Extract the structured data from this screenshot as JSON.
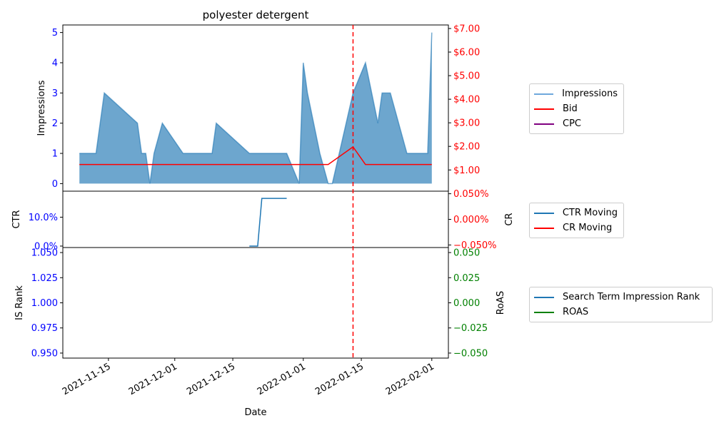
{
  "chart_data": [
    {
      "panel": "impressions-bid",
      "type": "area",
      "title": "polyester detergent",
      "ylabel_left": "Impressions",
      "ylabel_right": "",
      "ylim_left": [
        -0.25,
        5.25
      ],
      "yticks_left": [
        "0",
        "1",
        "2",
        "3",
        "4",
        "5"
      ],
      "ylim_right": [
        0.1,
        7.15
      ],
      "yticks_right": [
        "$1.00",
        "$2.00",
        "$3.00",
        "$4.00",
        "$5.00",
        "$6.00",
        "$7.00"
      ],
      "legend": [
        "Impressions",
        "Bid",
        "CPC"
      ],
      "legend_placement": "outside-right",
      "series": [
        {
          "name": "Impressions",
          "color": "#1f77b4",
          "axis": "left",
          "x": [
            "2021-11-08",
            "2021-11-12",
            "2021-11-14",
            "2021-11-22",
            "2021-11-23",
            "2021-11-24",
            "2021-11-25",
            "2021-11-26",
            "2021-11-28",
            "2021-12-03",
            "2021-12-10",
            "2021-12-11",
            "2021-12-19",
            "2021-12-28",
            "2021-12-31",
            "2022-01-01",
            "2022-01-02",
            "2022-01-05",
            "2022-01-07",
            "2022-01-08",
            "2022-01-13",
            "2022-01-16",
            "2022-01-19",
            "2022-01-20",
            "2022-01-22",
            "2022-01-26",
            "2022-01-31",
            "2022-02-01"
          ],
          "values": [
            1,
            1,
            3,
            2,
            1,
            1,
            0,
            1,
            2,
            1,
            1,
            2,
            1,
            1,
            0,
            4,
            3,
            1,
            0,
            0,
            3,
            4,
            2,
            3,
            3,
            1,
            1,
            5
          ]
        },
        {
          "name": "Bid",
          "color": "#ff0000",
          "axis": "right",
          "x": [
            "2021-11-08",
            "2022-01-07",
            "2022-01-13",
            "2022-01-16",
            "2022-02-01"
          ],
          "values": [
            1.23,
            1.23,
            1.98,
            1.23,
            1.23
          ]
        },
        {
          "name": "CPC",
          "color": "#800080",
          "axis": "right",
          "x": [],
          "values": []
        }
      ],
      "annotations": [
        {
          "type": "vline",
          "x": "2022-01-13",
          "color": "#ff0000",
          "style": "dashed"
        }
      ]
    },
    {
      "panel": "ctr-cr",
      "type": "line",
      "ylabel_left": "CTR",
      "ylabel_right": "CR",
      "ylim_left": [
        -0.005,
        0.19
      ],
      "yticks_left": [
        "0.0%",
        "10.0%"
      ],
      "ylim_right": [
        -0.00055,
        0.00055
      ],
      "yticks_right": [
        "0.050%",
        "0.000%",
        "−0.050%"
      ],
      "legend": [
        "CTR Moving",
        "CR Moving"
      ],
      "legend_placement": "outside-right",
      "series": [
        {
          "name": "CTR Moving",
          "color": "#1f77b4",
          "axis": "left",
          "x": [
            "2021-12-19",
            "2021-12-21",
            "2021-12-22",
            "2021-12-28"
          ],
          "values": [
            0.0,
            0.0,
            0.165,
            0.165
          ]
        },
        {
          "name": "CR Moving",
          "color": "#ff0000",
          "axis": "right",
          "x": [],
          "values": []
        }
      ]
    },
    {
      "panel": "rank-roas",
      "type": "line",
      "ylabel_left": "IS Rank",
      "ylabel_right": "RoAS",
      "ylim_left": [
        0.945,
        1.055
      ],
      "yticks_left": [
        "0.950",
        "0.975",
        "1.000",
        "1.025",
        "1.050"
      ],
      "ylim_right": [
        -0.055,
        0.055
      ],
      "yticks_right": [
        "−0.050",
        "−0.025",
        "0.000",
        "0.025",
        "0.050"
      ],
      "xlabel": "Date",
      "xticks": [
        "2021-11-15",
        "2021-12-01",
        "2021-12-15",
        "2022-01-01",
        "2022-01-15",
        "2022-02-01"
      ],
      "legend": [
        "Search Term Impression Rank",
        "ROAS"
      ],
      "legend_placement": "outside-right",
      "series": [
        {
          "name": "Search Term Impression Rank",
          "color": "#1f77b4",
          "axis": "left",
          "x": [],
          "values": []
        },
        {
          "name": "ROAS",
          "color": "#008000",
          "axis": "right",
          "x": [],
          "values": []
        }
      ]
    }
  ],
  "colors": {
    "left_axis": "#0000ff",
    "bid_axis": "#ff0000",
    "cr_axis": "#ff0000",
    "roas_axis": "#008000",
    "fill": "#1f77b4"
  }
}
